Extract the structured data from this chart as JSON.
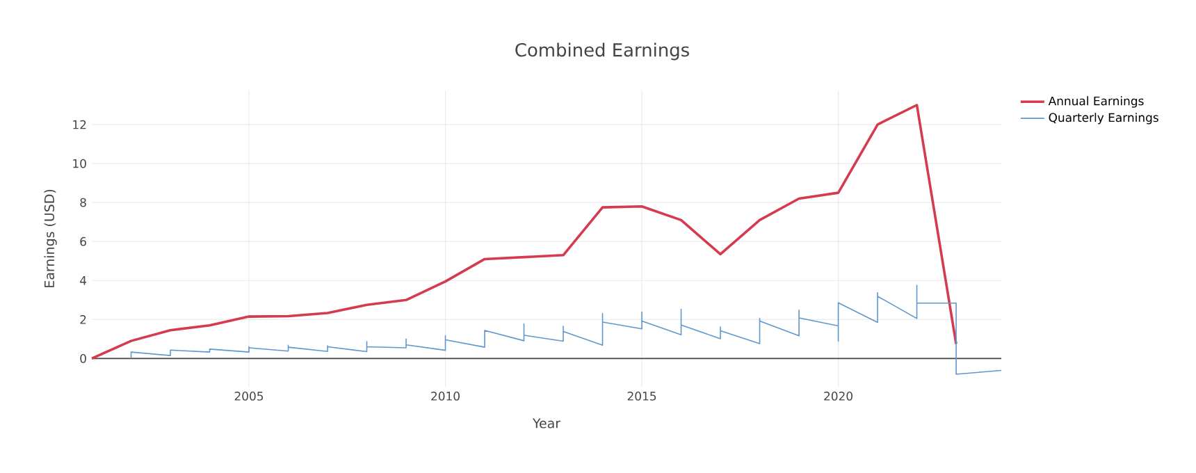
{
  "chart_data": {
    "type": "line",
    "title": "Combined Earnings",
    "xlabel": "Year",
    "ylabel": "Earnings (USD)",
    "xlim": [
      2001,
      2024.15
    ],
    "xticks": [
      2005,
      2010,
      2015,
      2020
    ],
    "ylim": [
      -1.45,
      13.75
    ],
    "yticks": [
      0,
      2,
      4,
      6,
      8,
      10,
      12
    ],
    "grid": true,
    "legend": "top right",
    "marker": "none",
    "line_style": "solid",
    "ref_lines": [
      {
        "axis": "y",
        "value": 0,
        "color": "#444444"
      }
    ],
    "series": [
      {
        "name": "Annual Earnings",
        "color": "#d63a4e",
        "x": [
          2001,
          2002,
          2003,
          2004,
          2005,
          2006,
          2007,
          2008,
          2009,
          2010,
          2011,
          2012,
          2013,
          2014,
          2015,
          2016,
          2017,
          2018,
          2019,
          2020,
          2021,
          2022,
          2023
        ],
        "values": [
          0,
          0.9,
          1.45,
          1.7,
          2.15,
          2.17,
          2.33,
          2.75,
          3.0,
          3.95,
          5.1,
          5.2,
          5.3,
          7.75,
          7.8,
          7.1,
          5.35,
          7.1,
          8.2,
          8.5,
          12.0,
          13.0,
          0.75
        ]
      },
      {
        "name": "Quarterly Earnings",
        "color": "#5f97cb",
        "x": [
          2002,
          2002,
          2003,
          2003,
          2004,
          2004,
          2005,
          2005,
          2005,
          2006,
          2006,
          2006,
          2007,
          2007,
          2007,
          2008,
          2008,
          2008,
          2009,
          2009,
          2009,
          2010,
          2010,
          2010,
          2011,
          2011,
          2012,
          2012,
          2012,
          2013,
          2013,
          2013,
          2014,
          2014,
          2014,
          2015,
          2015,
          2015,
          2016,
          2016,
          2016,
          2017,
          2017,
          2017,
          2018,
          2018,
          2018,
          2019,
          2019,
          2019,
          2020,
          2020,
          2020,
          2021,
          2021,
          2021,
          2022,
          2022,
          2022,
          2023,
          2023,
          2024.15
        ],
        "values": [
          0,
          0.33,
          0.15,
          0.43,
          0.33,
          0.48,
          0.33,
          0.6,
          0.55,
          0.38,
          0.68,
          0.58,
          0.36,
          0.65,
          0.6,
          0.35,
          0.87,
          0.6,
          0.55,
          1.0,
          0.7,
          0.42,
          1.17,
          0.96,
          0.58,
          1.44,
          0.91,
          1.77,
          1.19,
          0.89,
          1.65,
          1.39,
          0.68,
          2.3,
          1.87,
          1.52,
          2.38,
          1.92,
          1.22,
          2.53,
          1.72,
          1.01,
          1.62,
          1.42,
          0.76,
          2.05,
          1.92,
          1.16,
          2.48,
          2.08,
          1.67,
          0.89,
          2.86,
          1.85,
          3.37,
          3.19,
          2.05,
          3.75,
          2.84,
          2.84,
          -0.81,
          -0.61
        ]
      }
    ]
  }
}
